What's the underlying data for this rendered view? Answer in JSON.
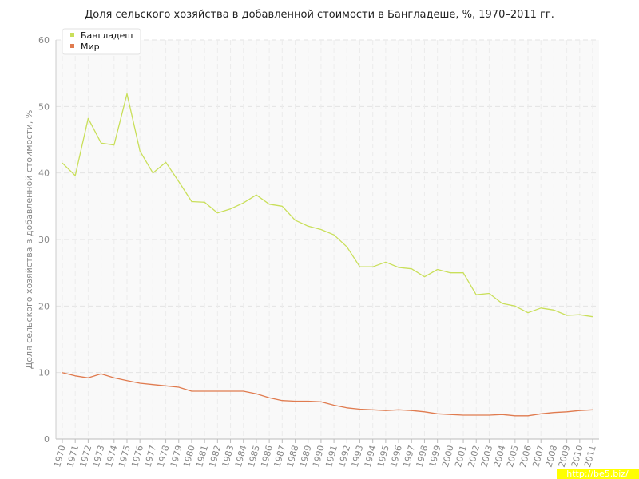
{
  "chart_data": {
    "type": "line",
    "title": "Доля сельского хозяйства в добавленной стоимости в Бангладеше, %, 1970–2011 гг.",
    "ylabel": "Доля сельского хозяйства в добавленной стоимости, %",
    "ylim": [
      0,
      60
    ],
    "yticks": [
      "0",
      "10",
      "20",
      "30",
      "40",
      "50",
      "60"
    ],
    "x": [
      "1970",
      "1971",
      "1972",
      "1973",
      "1974",
      "1975",
      "1976",
      "1977",
      "1978",
      "1979",
      "1980",
      "1981",
      "1982",
      "1983",
      "1984",
      "1985",
      "1986",
      "1987",
      "1988",
      "1989",
      "1990",
      "1991",
      "1992",
      "1993",
      "1994",
      "1995",
      "1996",
      "1997",
      "1998",
      "1999",
      "2000",
      "2001",
      "2002",
      "2003",
      "2004",
      "2005",
      "2006",
      "2007",
      "2008",
      "2009",
      "2010",
      "2011"
    ],
    "series": [
      {
        "name": "Бангладеш",
        "color": "#c9df5a",
        "values": [
          41.5,
          39.6,
          48.2,
          44.5,
          44.2,
          51.9,
          43.3,
          40.0,
          41.6,
          38.7,
          35.7,
          35.6,
          34.0,
          34.6,
          35.5,
          36.7,
          35.3,
          35.0,
          32.9,
          32.0,
          31.5,
          30.7,
          28.9,
          25.9,
          25.9,
          26.6,
          25.8,
          25.6,
          24.4,
          25.5,
          25.0,
          25.0,
          21.7,
          21.9,
          20.4,
          20.0,
          19.0,
          19.7,
          19.4,
          18.6,
          18.7,
          18.4
        ]
      },
      {
        "name": "Мир",
        "color": "#e07b4f",
        "values": [
          10.0,
          9.5,
          9.2,
          9.8,
          9.2,
          8.8,
          8.4,
          8.2,
          8.0,
          7.8,
          7.2,
          7.2,
          7.2,
          7.2,
          7.2,
          6.8,
          6.2,
          5.8,
          5.7,
          5.7,
          5.6,
          5.1,
          4.7,
          4.5,
          4.4,
          4.3,
          4.4,
          4.3,
          4.1,
          3.8,
          3.7,
          3.6,
          3.6,
          3.6,
          3.7,
          3.5,
          3.5,
          3.8,
          4.0,
          4.1,
          4.3,
          4.4
        ]
      }
    ],
    "grid": true,
    "legend": "top-left"
  },
  "watermark": "http://be5.biz/"
}
